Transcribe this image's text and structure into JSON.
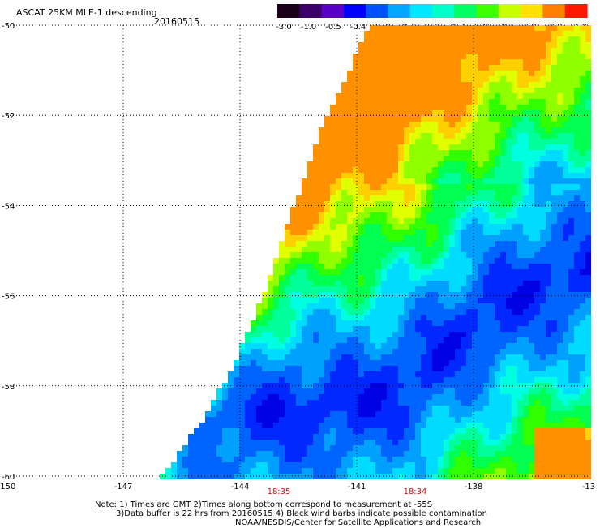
{
  "header": {
    "title": "ASCAT 25KM MLE-1 descending",
    "date": "20160515"
  },
  "colorbar": {
    "tick_labels": [
      "-3.0",
      "-1.0",
      "-0.5",
      "-0.4",
      "-0.35",
      "-0.3",
      "-0.25",
      "-0.2",
      "-0.15",
      "-0.1",
      "-0.05",
      "0.0",
      "1.0"
    ],
    "colors": [
      "#1a0018",
      "#3c0068",
      "#5a00c8",
      "#0000ff",
      "#0050ff",
      "#00a8ff",
      "#00e8ff",
      "#00ffc8",
      "#00ff64",
      "#40ff00",
      "#c8ff00",
      "#ffe000",
      "#ff8000",
      "#ff1800"
    ]
  },
  "chart_data": {
    "type": "heatmap",
    "title": "ASCAT 25KM MLE-1 descending",
    "xlim": [
      -150,
      -135
    ],
    "ylim": [
      -60,
      -50
    ],
    "x_tick_labels": [
      "-150",
      "-147",
      "-144",
      "-141",
      "-138",
      "-13"
    ],
    "y_tick_labels": [
      "-50",
      "-52",
      "-54",
      "-56",
      "-58",
      "-60"
    ],
    "grid": true,
    "time_labels": [
      {
        "lon": -143.0,
        "text": "18:35"
      },
      {
        "lon": -139.5,
        "text": "18:34"
      }
    ],
    "swath_west_edge": [
      [
        -140.7,
        -50
      ],
      [
        -141.2,
        -51
      ],
      [
        -142.0,
        -52.5
      ],
      [
        -142.6,
        -54
      ],
      [
        -143.4,
        -56
      ],
      [
        -144.2,
        -57.6
      ],
      [
        -145.0,
        -58.8
      ],
      [
        -146.0,
        -60
      ]
    ],
    "swath_east_edge": -135,
    "color_scale": [
      -3.0,
      -1.0,
      -0.5,
      -0.4,
      -0.35,
      -0.3,
      -0.25,
      -0.2,
      -0.15,
      -0.1,
      -0.05,
      0.0,
      1.0
    ],
    "blue_band_axis": [
      [
        -146.0,
        -59.0
      ],
      [
        -144.0,
        -58.6
      ],
      [
        -141.0,
        -58.5
      ],
      [
        -139.5,
        -57.8
      ],
      [
        -138.2,
        -56.8
      ],
      [
        -137.3,
        -56.3
      ],
      [
        -136.5,
        -55.8
      ],
      [
        -135.0,
        -55.4
      ]
    ],
    "legend": "colorbar top-right"
  },
  "footer": {
    "line1": "Note: 1) Times are GMT 2)Times along bottom correspond to measurement at -55S",
    "line2": "3)Data buffer is 22 hrs from 20160515 4) Black wind barbs indicate possible contamination",
    "line3": "NOAA/NESDIS/Center for Satellite Applications and Research"
  }
}
